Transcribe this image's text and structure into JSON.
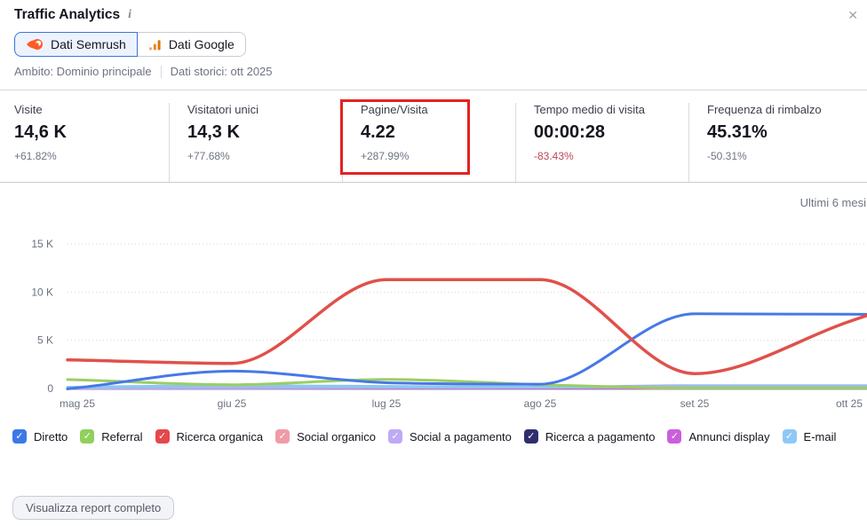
{
  "header": {
    "title": "Traffic Analytics",
    "info_icon_glyph": "i",
    "close_glyph": "✕"
  },
  "toggle": {
    "semrush_label": "Dati Semrush",
    "google_label": "Dati Google",
    "selected": "Dati Semrush"
  },
  "scope": {
    "ambito": "Ambito: Dominio principale",
    "storici": "Dati storici: ott 2025"
  },
  "metrics": [
    {
      "label": "Visite",
      "value": "14,6 K",
      "delta": "+61.82%",
      "delta_color": "#6e7383",
      "highlighted": false
    },
    {
      "label": "Visitatori unici",
      "value": "14,3 K",
      "delta": "+77.68%",
      "delta_color": "#6e7383",
      "highlighted": false
    },
    {
      "label": "Pagine/Visita",
      "value": "4.22",
      "delta": "+287.99%",
      "delta_color": "#6e7383",
      "highlighted": true
    },
    {
      "label": "Tempo medio di visita",
      "value": "00:00:28",
      "delta": "-83.43%",
      "delta_color": "#c04657",
      "highlighted": false
    },
    {
      "label": "Frequenza di rimbalzo",
      "value": "45.31%",
      "delta": "-50.31%",
      "delta_color": "#6e7383",
      "highlighted": false
    }
  ],
  "chart_data": {
    "type": "line",
    "period_label": "Ultimi 6 mesi",
    "categories": [
      "mag 25",
      "giu 25",
      "lug 25",
      "ago 25",
      "set 25",
      "ott 25"
    ],
    "y_ticks": [
      0,
      5,
      10,
      15
    ],
    "y_tick_labels": [
      "0",
      "5 K",
      "10 K",
      "15 K"
    ],
    "ylim": [
      0,
      15
    ],
    "unit": "K visits",
    "grid": "dotted horizontal",
    "legend_position": "bottom",
    "series": [
      {
        "name": "Diretto",
        "line_color": "#4678e8",
        "box_color": "#3d78e6",
        "values": [
          0.07,
          1.8,
          0.6,
          0.45,
          7.75,
          7.7
        ]
      },
      {
        "name": "Referral",
        "line_color": "#9ccd63",
        "box_color": "#90d05c",
        "values": [
          0.9,
          0.4,
          0.95,
          0.4,
          0.05,
          0.05
        ]
      },
      {
        "name": "Ricerca organica",
        "line_color": "#e0514a",
        "box_color": "#e5484a",
        "values": [
          2.95,
          2.6,
          11.3,
          11.3,
          1.55,
          6.95
        ]
      },
      {
        "name": "Social organico",
        "line_color": "#f2a3ad",
        "box_color": "#f09ba6",
        "values": [
          0.07,
          0.1,
          0.08,
          0.05,
          0.05,
          0.05
        ]
      },
      {
        "name": "Social a pagamento",
        "line_color": "#aab3ec",
        "box_color": "#c0a9f6",
        "values": [
          0.04,
          0.07,
          0.1,
          0.12,
          0.3,
          0.3
        ]
      },
      {
        "name": "Ricerca a pagamento",
        "line_color": "#2e2e6e",
        "box_color": "#2e2e6e",
        "values": [
          0.02,
          0.02,
          0.02,
          0.02,
          0.02,
          0.02
        ]
      },
      {
        "name": "Annunci display",
        "line_color": "#c45fd4",
        "box_color": "#ca5fdd",
        "values": [
          0.01,
          0.05,
          0.05,
          0.05,
          0.1,
          0.1
        ]
      },
      {
        "name": "E-mail",
        "line_color": "#8cc6f0",
        "box_color": "#8fc8f6",
        "values": [
          0.15,
          0.3,
          0.22,
          0.15,
          0.15,
          0.15
        ]
      }
    ]
  },
  "legend": {
    "check_glyph": "✓"
  },
  "footer": {
    "report_button_label": "Visualizza report completo"
  }
}
